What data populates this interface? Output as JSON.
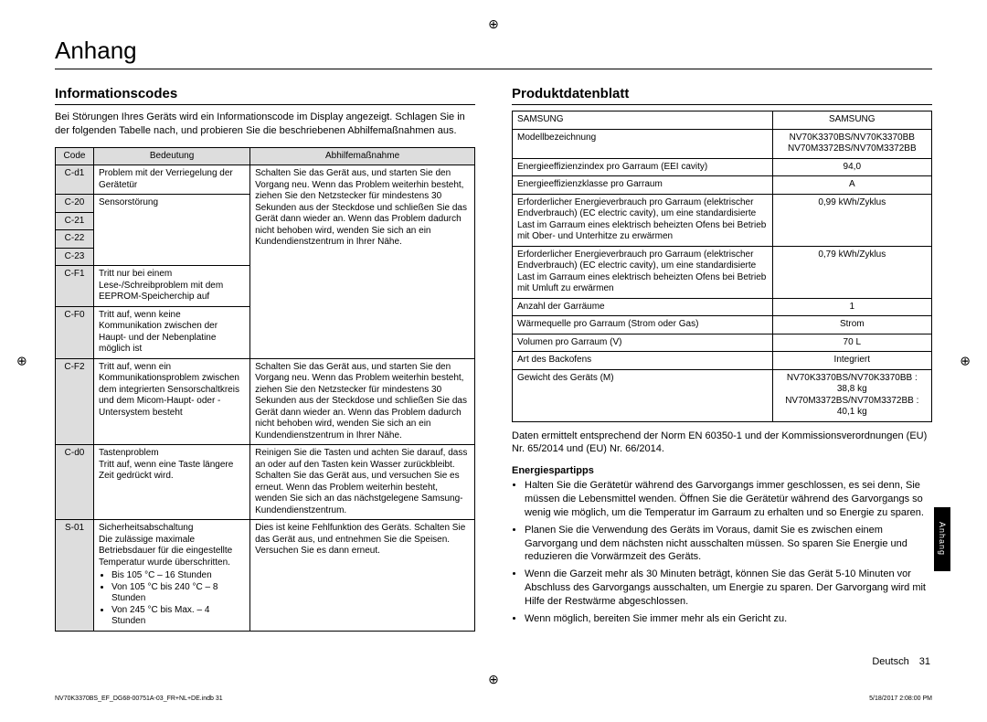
{
  "registration_mark": "⊕",
  "section_title": "Anhang",
  "side_tab": "Anhang",
  "page_lang": "Deutsch",
  "page_num": "31",
  "print_foot_left": "NV70K3370BS_EF_DG68-00751A-03_FR+NL+DE.indb   31",
  "print_foot_right": "5/18/2017   2:08:00 PM",
  "left": {
    "heading": "Informationscodes",
    "intro": "Bei Störungen Ihres Geräts wird ein Informationscode im Display angezeigt. Schlagen Sie in der folgenden Tabelle nach, und probieren Sie die beschriebenen Abhilfemaßnahmen aus.",
    "th_code": "Code",
    "th_meaning": "Bedeutung",
    "th_action": "Abhilfemaßnahme",
    "rows": {
      "r0": {
        "code": "C-d1",
        "meaning": "Problem mit der Verriegelung der Gerätetür"
      },
      "r1": {
        "code": "C-20"
      },
      "r2": {
        "code": "C-21"
      },
      "r3": {
        "code": "C-22"
      },
      "r4": {
        "code": "C-23"
      },
      "sensor_meaning": "Sensorstörung",
      "action_a": "Schalten Sie das Gerät aus, und starten Sie den Vorgang neu. Wenn das Problem weiterhin besteht, ziehen Sie den Netzstecker für mindestens 30 Sekunden aus der Steckdose und schließen Sie das Gerät dann wieder an. Wenn das Problem dadurch nicht behoben wird, wenden Sie sich an ein Kundendienstzentrum in Ihrer Nähe.",
      "r5": {
        "code": "C-F1",
        "meaning": "Tritt nur bei einem Lese-/Schreibproblem mit dem EEPROM-Speicherchip auf"
      },
      "r6": {
        "code": "C-F0",
        "meaning": "Tritt auf, wenn keine Kommunikation zwischen der Haupt- und der Nebenplatine möglich ist"
      },
      "r7": {
        "code": "C-F2",
        "meaning": "Tritt auf, wenn ein Kommunikationsproblem zwischen dem integrierten Sensorschaltkreis und dem Micom-Haupt- oder -Untersystem besteht",
        "action": "Schalten Sie das Gerät aus, und starten Sie den Vorgang neu. Wenn das Problem weiterhin besteht, ziehen Sie den Netzstecker für mindestens 30 Sekunden aus der Steckdose und schließen Sie das Gerät dann wieder an. Wenn das Problem dadurch nicht behoben wird, wenden Sie sich an ein Kundendienstzentrum in Ihrer Nähe."
      },
      "r8": {
        "code": "C-d0",
        "meaning_head": "Tastenproblem",
        "meaning_body": "Tritt auf, wenn eine Taste längere Zeit gedrückt wird.",
        "action": "Reinigen Sie die Tasten und achten Sie darauf, dass an oder auf den Tasten kein Wasser zurückbleibt. Schalten Sie das Gerät aus, und versuchen Sie es erneut. Wenn das Problem weiterhin besteht, wenden Sie sich an das nächstgelegene Samsung-Kundendienstzentrum."
      },
      "r9": {
        "code": "S-01",
        "meaning_head": "Sicherheitsabschaltung",
        "meaning_body": "Die zulässige maximale Betriebsdauer für die eingestellte Temperatur wurde überschritten.",
        "b1": "Bis 105 °C – 16 Stunden",
        "b2": "Von 105 °C bis 240 °C – 8 Stunden",
        "b3": "Von 245 °C bis Max. – 4 Stunden",
        "action": "Dies ist keine Fehlfunktion des Geräts. Schalten Sie das Gerät aus, und entnehmen Sie die Speisen. Versuchen Sie es dann erneut."
      }
    }
  },
  "right": {
    "heading": "Produktdatenblatt",
    "rows": [
      [
        "SAMSUNG",
        "SAMSUNG"
      ],
      [
        "Modellbezeichnung",
        "NV70K3370BS/NV70K3370BB\nNV70M3372BS/NV70M3372BB"
      ],
      [
        "Energieeffizienzindex pro Garraum (EEI cavity)",
        "94,0"
      ],
      [
        "Energieeffizienzklasse pro Garraum",
        "A"
      ],
      [
        "Erforderlicher Energieverbrauch pro Garraum (elektrischer Endverbrauch) (EC electric cavity), um eine standardisierte Last im Garraum eines elektrisch beheizten Ofens bei Betrieb mit Ober- und Unterhitze zu erwärmen",
        "0,99 kWh/Zyklus"
      ],
      [
        "Erforderlicher Energieverbrauch pro Garraum (elektrischer Endverbrauch) (EC electric cavity), um eine standardisierte Last im Garraum eines elektrisch beheizten Ofens bei Betrieb mit Umluft zu erwärmen",
        "0,79 kWh/Zyklus"
      ],
      [
        "Anzahl der Garräume",
        "1"
      ],
      [
        "Wärmequelle pro Garraum (Strom oder Gas)",
        "Strom"
      ],
      [
        "Volumen pro Garraum (V)",
        "70 L"
      ],
      [
        "Art des Backofens",
        "Integriert"
      ],
      [
        "Gewicht des Geräts (M)",
        "NV70K3370BS/NV70K3370BB : 38,8 kg\nNV70M3372BS/NV70M3372BB : 40,1 kg"
      ]
    ],
    "note": "Daten ermittelt entsprechend der Norm EN 60350-1 und der Kommissionsverordnungen (EU) Nr. 65/2014 und (EU) Nr. 66/2014.",
    "tips_head": "Energiespartipps",
    "tips": [
      "Halten Sie die Gerätetür während des Garvorgangs immer geschlossen, es sei denn, Sie müssen die Lebensmittel wenden. Öffnen Sie die Gerätetür während des Garvorgangs so wenig wie möglich, um die Temperatur im Garraum zu erhalten und so Energie zu sparen.",
      "Planen Sie die Verwendung des Geräts im Voraus, damit Sie es zwischen einem Garvorgang und dem nächsten nicht ausschalten müssen. So sparen Sie Energie und reduzieren die Vorwärmzeit des Geräts.",
      "Wenn die Garzeit mehr als 30 Minuten beträgt, können Sie das Gerät 5-10 Minuten vor Abschluss des Garvorgangs ausschalten, um Energie zu sparen. Der Garvorgang wird mit Hilfe der Restwärme abgeschlossen.",
      "Wenn möglich, bereiten Sie immer mehr als ein Gericht zu."
    ]
  }
}
